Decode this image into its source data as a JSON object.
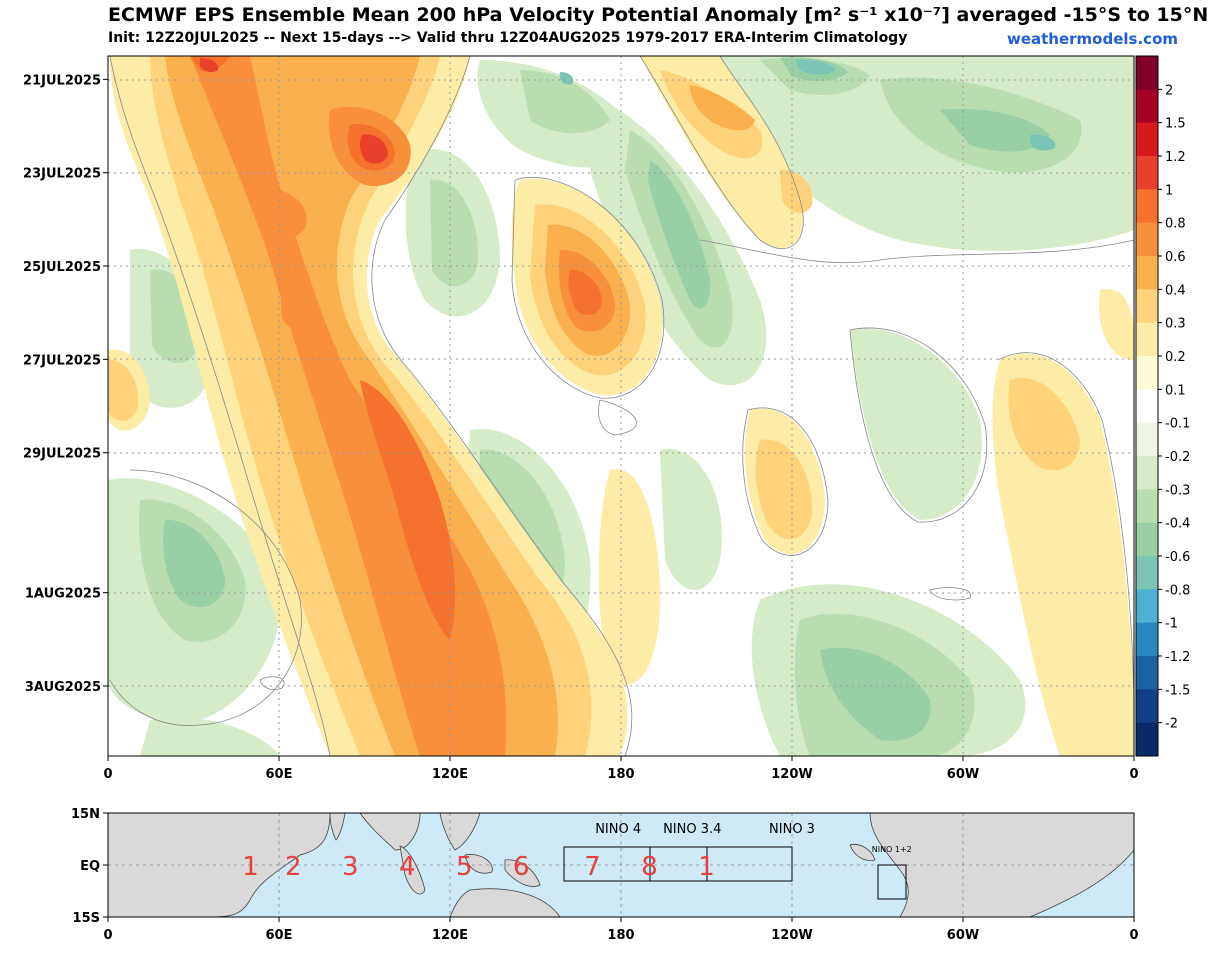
{
  "title": "ECMWF EPS Ensemble Mean 200 hPa Velocity Potential Anomaly [m² s⁻¹ x10⁻⁷] averaged -15°S to 15°N",
  "subtitle": "Init: 12Z20JUL2025 -- Next 15-days --> Valid thru 12Z04AUG2025 1979-2017 ERA-Interim Climatology",
  "brand": "weathermodels.com",
  "chart_data": {
    "type": "heatmap",
    "x_axis": {
      "ticks": [
        "0",
        "60E",
        "120E",
        "180",
        "120W",
        "60W",
        "0"
      ],
      "range_deg_east": [
        0,
        360
      ]
    },
    "y_axis": {
      "ticks": [
        "21JUL2025",
        "23JUL2025",
        "25JUL2025",
        "27JUL2025",
        "29JUL2025",
        "1AUG2025",
        "3AUG2025"
      ],
      "range_days": [
        0,
        15
      ],
      "direction": "time increases downward"
    },
    "colorbar": {
      "levels": [
        "2",
        "1.5",
        "1.2",
        "1",
        "0.8",
        "0.6",
        "0.4",
        "0.3",
        "0.2",
        "0.1",
        "-0.1",
        "-0.2",
        "-0.3",
        "-0.4",
        "-0.6",
        "-0.8",
        "-1",
        "-1.2",
        "-1.5",
        "-2"
      ],
      "colors": [
        "#800026",
        "#a50026",
        "#d7191c",
        "#e8402b",
        "#f4722c",
        "#f88f3b",
        "#fbb04e",
        "#fdd27b",
        "#fdeca5",
        "#fefbd6",
        "#ffffff",
        "#eef6e3",
        "#d6ecc9",
        "#b8deb0",
        "#98d0a4",
        "#7bc4b6",
        "#4fb0d6",
        "#2a87c0",
        "#1c63a6",
        "#123f86",
        "#0a2a67"
      ]
    },
    "features": [
      {
        "sign": "positive",
        "description": "strong positive anomaly band",
        "lon_start": 30,
        "lon_end": 145,
        "day_start": 0,
        "day_end": 15,
        "peak": 1.0
      },
      {
        "sign": "positive",
        "description": "positive anomaly near 170E",
        "lon_start": 150,
        "lon_end": 190,
        "day_start": 2,
        "day_end": 7,
        "peak": 0.8
      },
      {
        "sign": "negative",
        "description": "negative anomaly over Pacific",
        "lon_start": 200,
        "lon_end": 250,
        "day_start": 10,
        "day_end": 15,
        "peak": -0.6
      },
      {
        "sign": "negative",
        "description": "negative anomaly over Atlantic",
        "lon_start": 230,
        "lon_end": 330,
        "day_start": 0,
        "day_end": 4,
        "peak": -0.8
      }
    ]
  },
  "map": {
    "x_ticks": [
      "0",
      "60E",
      "120E",
      "180",
      "120W",
      "60W",
      "0"
    ],
    "y_ticks": [
      "15N",
      "EQ",
      "15S"
    ],
    "phases": [
      "1",
      "2",
      "3",
      "4",
      "5",
      "6",
      "7",
      "8",
      "1"
    ],
    "nino_labels": [
      "NINO 4",
      "NINO 3.4",
      "NINO 3",
      "NINO 1+2"
    ],
    "ocean_color": "#cdeaf6",
    "land_color": "#d9d9d9"
  }
}
